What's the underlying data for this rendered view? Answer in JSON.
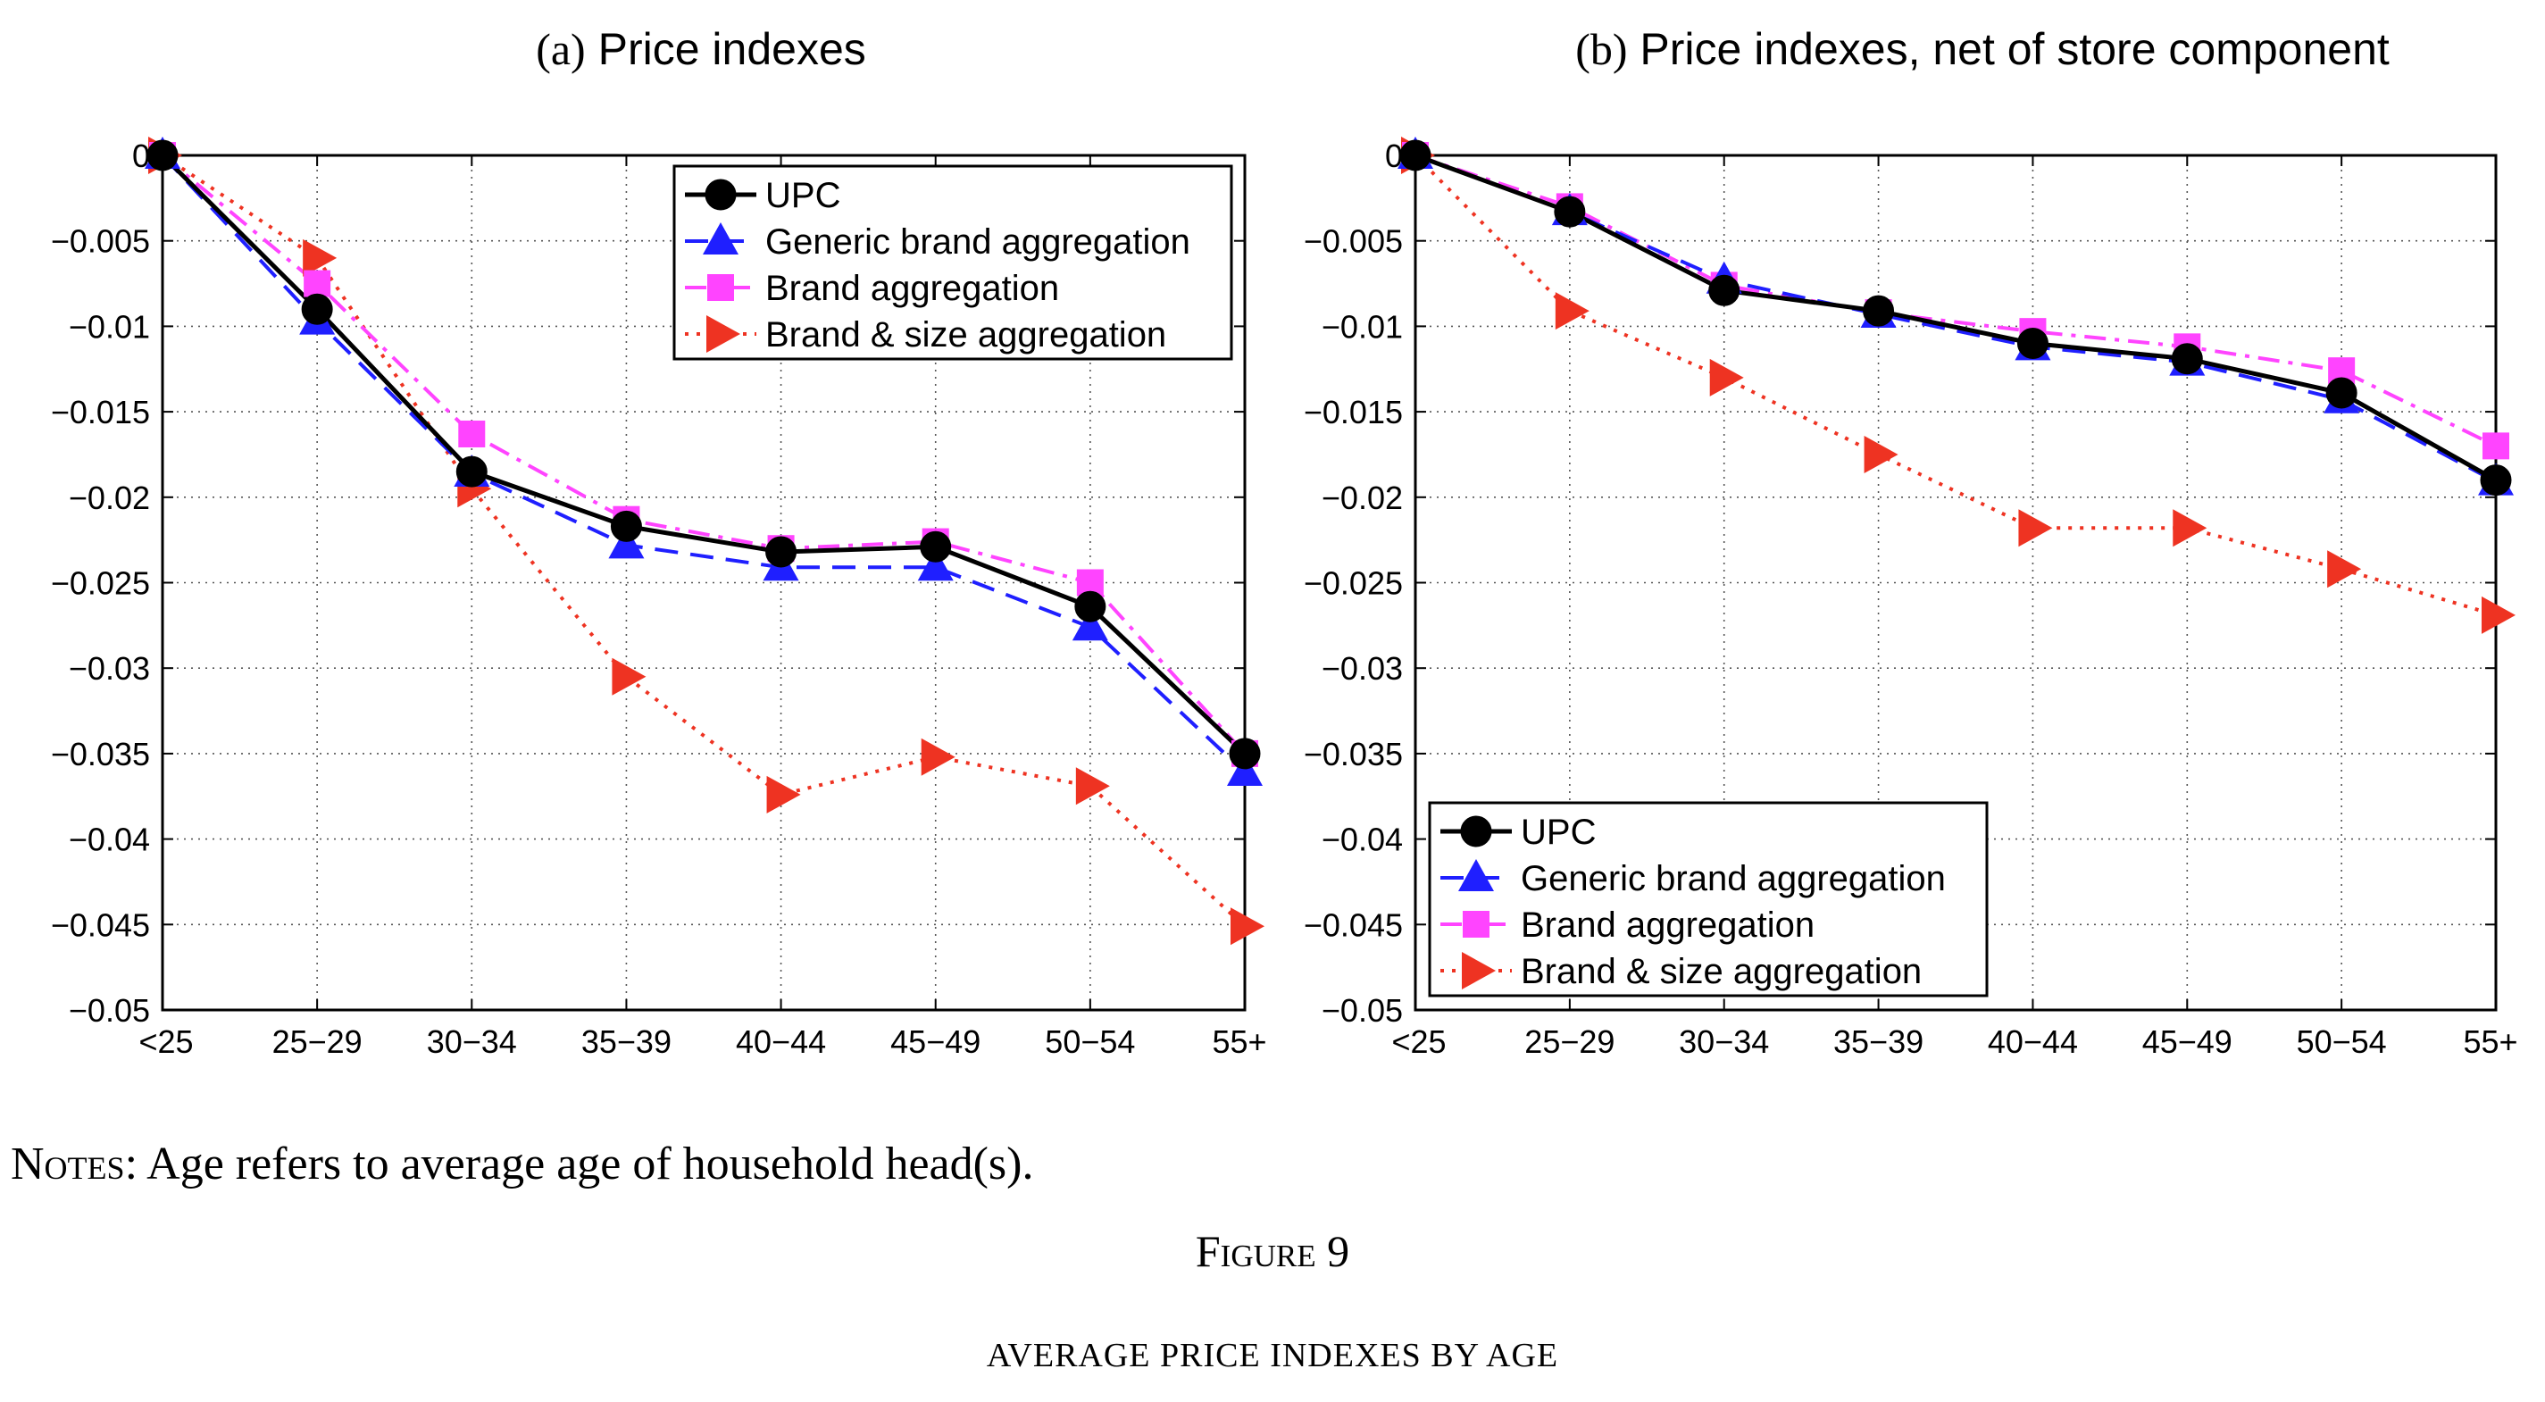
{
  "chart_data": [
    {
      "type": "line",
      "panel_label": "(a)",
      "title": "Price indexes",
      "categories": [
        "<25",
        "25−29",
        "30−34",
        "35−39",
        "40−44",
        "45−49",
        "50−54",
        "55+"
      ],
      "yticks": [
        "0",
        "−0.005",
        "−0.01",
        "−0.015",
        "−0.02",
        "−0.025",
        "−0.03",
        "−0.035",
        "−0.04",
        "−0.045",
        "−0.05"
      ],
      "ylim": [
        -0.05,
        0
      ],
      "grid": true,
      "legend_position": "top-right",
      "series": [
        {
          "name": "UPC",
          "color": "#000000",
          "marker": "circle",
          "line": "solid",
          "values": [
            0,
            -0.009,
            -0.0185,
            -0.0217,
            -0.0232,
            -0.0229,
            -0.0264,
            -0.035
          ]
        },
        {
          "name": "Generic brand aggregation",
          "color": "#1f1fff",
          "marker": "triangle-up",
          "line": "dashed",
          "values": [
            0,
            -0.0097,
            -0.0186,
            -0.0228,
            -0.0241,
            -0.0241,
            -0.0276,
            -0.0361
          ]
        },
        {
          "name": "Brand aggregation",
          "color": "#ff44ff",
          "marker": "square",
          "line": "dashdot",
          "values": [
            0,
            -0.0075,
            -0.0163,
            -0.0213,
            -0.023,
            -0.0226,
            -0.025,
            -0.035
          ]
        },
        {
          "name": "Brand & size aggregation",
          "color": "#ee3322",
          "marker": "triangle-right",
          "line": "dotted",
          "values": [
            0,
            -0.006,
            -0.0195,
            -0.0305,
            -0.0374,
            -0.0352,
            -0.0369,
            -0.0451
          ]
        }
      ]
    },
    {
      "type": "line",
      "panel_label": "(b)",
      "title": "Price indexes, net of store component",
      "categories": [
        "<25",
        "25−29",
        "30−34",
        "35−39",
        "40−44",
        "45−49",
        "50−54",
        "55+"
      ],
      "yticks": [
        "0",
        "−0.005",
        "−0.01",
        "−0.015",
        "−0.02",
        "−0.025",
        "−0.03",
        "−0.035",
        "−0.04",
        "−0.045",
        "−0.05"
      ],
      "ylim": [
        -0.05,
        0
      ],
      "grid": true,
      "legend_position": "bottom-left",
      "series": [
        {
          "name": "UPC",
          "color": "#000000",
          "marker": "circle",
          "line": "solid",
          "values": [
            0,
            -0.0033,
            -0.0079,
            -0.0091,
            -0.011,
            -0.0119,
            -0.0139,
            -0.019
          ]
        },
        {
          "name": "Generic brand aggregation",
          "color": "#1f1fff",
          "marker": "triangle-up",
          "line": "dashed",
          "values": [
            0,
            -0.0033,
            -0.0073,
            -0.0093,
            -0.0112,
            -0.0121,
            -0.0143,
            -0.0191
          ]
        },
        {
          "name": "Brand aggregation",
          "color": "#ff44ff",
          "marker": "square",
          "line": "dashdot",
          "values": [
            0,
            -0.003,
            -0.0076,
            -0.0092,
            -0.0103,
            -0.0112,
            -0.0126,
            -0.017
          ]
        },
        {
          "name": "Brand & size aggregation",
          "color": "#ee3322",
          "marker": "triangle-right",
          "line": "dotted",
          "values": [
            0,
            -0.0091,
            -0.013,
            -0.0175,
            -0.0218,
            -0.0218,
            -0.0242,
            -0.0269
          ]
        }
      ]
    }
  ],
  "notes": {
    "label": "Notes",
    "text": ": Age refers to average age of household head(s)."
  },
  "figure": {
    "label": "Figure 9",
    "caption": "AVERAGE PRICE INDEXES BY AGE"
  }
}
